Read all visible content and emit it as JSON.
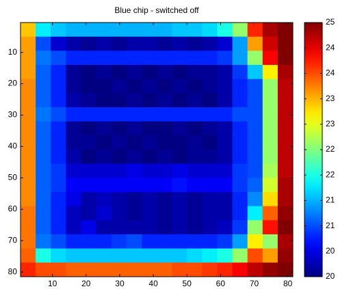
{
  "chart_data": {
    "type": "heatmap",
    "title": "Blue chip - switched off",
    "colormap": "jet",
    "y_reversed": true,
    "xlim": [
      0.5,
      81.5
    ],
    "ylim": [
      0.5,
      81.5
    ],
    "xticks": [
      10,
      20,
      30,
      40,
      50,
      60,
      70,
      80
    ],
    "yticks": [
      10,
      20,
      30,
      40,
      50,
      60,
      70,
      80
    ],
    "clim": [
      20,
      25
    ],
    "cticks": [
      {
        "value": 20,
        "label": "20"
      },
      {
        "value": 20.5,
        "label": "20"
      },
      {
        "value": 21,
        "label": "21"
      },
      {
        "value": 21.5,
        "label": "21"
      },
      {
        "value": 22,
        "label": "22"
      },
      {
        "value": 22.5,
        "label": "22"
      },
      {
        "value": 23,
        "label": "23"
      },
      {
        "value": 23.5,
        "label": "23"
      },
      {
        "value": 24,
        "label": "24"
      },
      {
        "value": 24.5,
        "label": "24"
      },
      {
        "value": 25,
        "label": "25"
      }
    ],
    "xbins": [
      0.5,
      5,
      9.5,
      14,
      18.5,
      23,
      27.5,
      32,
      36.5,
      41,
      45.5,
      50,
      54.5,
      59,
      63.5,
      68,
      72.5,
      77,
      81.5
    ],
    "ybins": [
      0.5,
      5,
      9.5,
      14,
      18.5,
      23,
      27.5,
      32,
      36.5,
      41,
      45.5,
      50,
      54.5,
      59,
      63.5,
      68,
      72.5,
      77,
      81.5
    ],
    "z": [
      [
        23.4,
        21.8,
        21.6,
        21.5,
        21.5,
        21.5,
        21.5,
        21.5,
        21.5,
        21.5,
        21.6,
        21.6,
        21.7,
        22.0,
        22.6,
        24.2,
        24.8,
        25
      ],
      [
        23.6,
        21.0,
        20.4,
        20.2,
        20.1,
        20.2,
        20.1,
        20.2,
        20.2,
        20.1,
        20.2,
        20.1,
        20.2,
        20.4,
        21.4,
        23.6,
        24.6,
        25
      ],
      [
        23.6,
        21.2,
        21.0,
        20.8,
        20.8,
        20.8,
        20.8,
        20.8,
        20.8,
        20.8,
        20.8,
        20.8,
        20.8,
        20.9,
        21.4,
        22.6,
        24.4,
        25
      ],
      [
        23.6,
        21.1,
        20.8,
        20.1,
        20.0,
        20.1,
        20.0,
        20.1,
        20.0,
        20.1,
        20.0,
        20.1,
        20.1,
        20.2,
        20.9,
        21.6,
        23.2,
        24.8
      ],
      [
        23.7,
        21.1,
        20.8,
        20.1,
        20.0,
        20.0,
        20.1,
        20.0,
        20.1,
        20.0,
        20.1,
        20.0,
        20.1,
        20.2,
        20.8,
        21.0,
        22.6,
        24.7
      ],
      [
        23.7,
        21.1,
        20.8,
        20.2,
        20.1,
        20.0,
        20.0,
        20.1,
        20.0,
        20.1,
        20.0,
        20.1,
        20.0,
        20.2,
        20.8,
        21.0,
        22.6,
        24.7
      ],
      [
        23.7,
        21.2,
        21.0,
        20.8,
        20.8,
        20.8,
        20.8,
        20.8,
        20.8,
        20.8,
        20.8,
        20.8,
        20.8,
        20.8,
        21.0,
        21.0,
        22.6,
        24.7
      ],
      [
        23.7,
        21.1,
        20.8,
        20.1,
        20.0,
        20.1,
        20.0,
        20.1,
        20.0,
        20.0,
        20.1,
        20.0,
        20.1,
        20.2,
        20.8,
        21.0,
        22.6,
        24.7
      ],
      [
        23.7,
        21.1,
        20.8,
        20.1,
        20.1,
        20.0,
        20.1,
        20.0,
        20.1,
        20.0,
        20.0,
        20.1,
        20.0,
        20.2,
        20.8,
        21.0,
        22.6,
        24.7
      ],
      [
        23.7,
        21.1,
        20.8,
        20.2,
        20.0,
        20.1,
        20.0,
        20.1,
        20.0,
        20.1,
        20.0,
        20.1,
        20.1,
        20.2,
        20.8,
        21.0,
        22.6,
        24.7
      ],
      [
        23.7,
        21.1,
        20.9,
        20.4,
        20.4,
        20.4,
        20.4,
        20.5,
        20.4,
        20.4,
        20.5,
        20.4,
        20.4,
        20.4,
        20.9,
        21.0,
        22.7,
        24.7
      ],
      [
        23.7,
        21.1,
        20.9,
        20.6,
        20.6,
        20.6,
        20.6,
        20.6,
        20.6,
        20.6,
        20.7,
        20.6,
        20.6,
        20.6,
        20.9,
        21.1,
        22.9,
        24.8
      ],
      [
        23.7,
        21.1,
        20.8,
        20.5,
        20.2,
        20.3,
        20.2,
        20.1,
        20.2,
        20.1,
        20.2,
        20.1,
        20.2,
        20.2,
        20.8,
        21.3,
        23.3,
        24.8
      ],
      [
        23.8,
        21.1,
        20.8,
        20.3,
        20.2,
        20.4,
        20.2,
        20.1,
        20.2,
        20.1,
        20.2,
        20.1,
        20.2,
        20.2,
        20.8,
        21.8,
        23.9,
        24.9
      ],
      [
        23.8,
        21.1,
        20.8,
        20.3,
        20.5,
        20.2,
        20.2,
        20.2,
        20.2,
        20.1,
        20.2,
        20.1,
        20.2,
        20.3,
        20.9,
        22.6,
        24.3,
        25
      ],
      [
        23.8,
        21.2,
        21.0,
        20.8,
        20.8,
        20.8,
        20.9,
        21.0,
        20.8,
        20.8,
        20.8,
        20.8,
        20.8,
        20.9,
        21.4,
        23.2,
        22.6,
        24.8
      ],
      [
        23.9,
        22.0,
        21.7,
        21.6,
        21.6,
        21.6,
        21.6,
        21.6,
        21.6,
        21.6,
        21.6,
        21.7,
        21.8,
        22.0,
        22.6,
        24.0,
        23.6,
        24.9
      ],
      [
        24.2,
        24.0,
        24.0,
        23.9,
        23.9,
        23.9,
        23.9,
        23.9,
        23.9,
        23.9,
        24.0,
        24.0,
        24.1,
        24.2,
        24.4,
        24.7,
        24.9,
        25
      ]
    ]
  }
}
